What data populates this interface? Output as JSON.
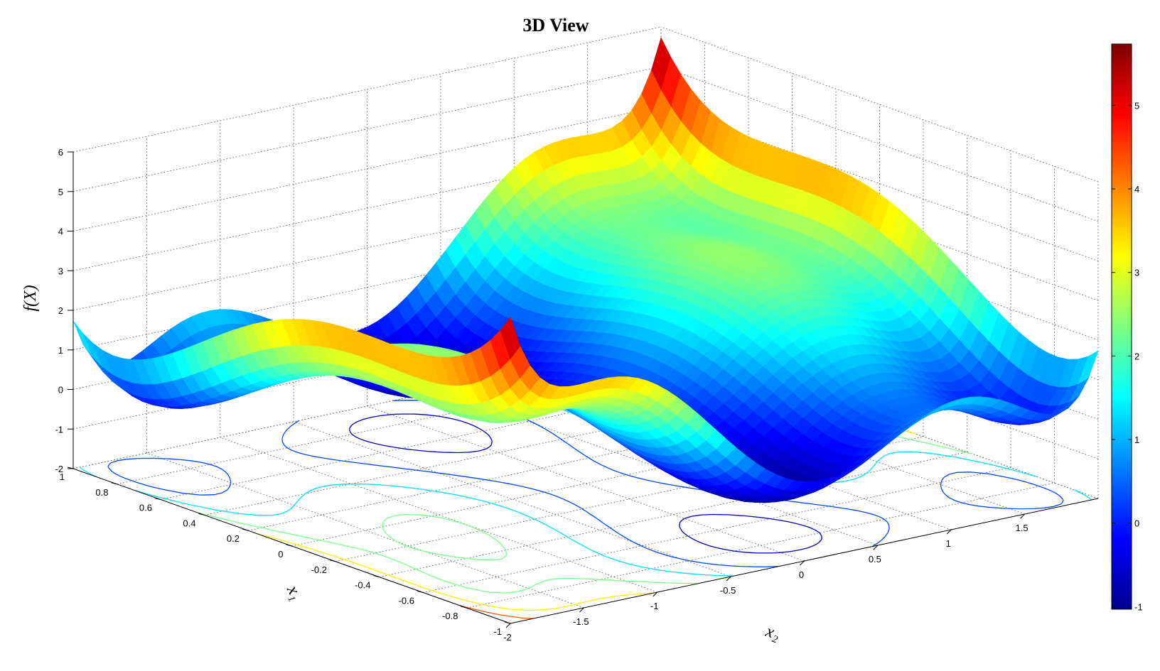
{
  "chart_data": {
    "type": "surface",
    "title": "3D View",
    "xlabel": "x₂",
    "ylabel": "x₁",
    "zlabel": "f(X)",
    "x2_range": [
      -2,
      2
    ],
    "x1_range": [
      -1,
      1
    ],
    "zlim": [
      -2,
      6
    ],
    "grid": "on",
    "colormap": "jet",
    "contour_projection": "floor",
    "x2_ticks": [
      "-2",
      "-1.5",
      "-1",
      "-0.5",
      "0",
      "0.5",
      "1",
      "1.5"
    ],
    "x1_ticks": [
      "-1",
      "-0.8",
      "-0.6",
      "-0.4",
      "-0.2",
      "0",
      "0.2",
      "0.4",
      "0.6",
      "0.8",
      "1"
    ],
    "z_ticks": [
      "-2",
      "-1",
      "0",
      "1",
      "2",
      "3",
      "4",
      "5",
      "6"
    ],
    "colorbar": {
      "range": [
        -1.031,
        5.734
      ],
      "tick_labels": [
        "-1",
        "0",
        "1",
        "2",
        "3",
        "4",
        "5"
      ],
      "colors": [
        "#00008f",
        "#0000ff",
        "#0080ff",
        "#00ffff",
        "#80ff80",
        "#ffff00",
        "#ff8000",
        "#ff0000",
        "#800000"
      ]
    },
    "function": "(4 - 2.1*x2^2 + x2^4/3)*x2^2 + x2*x1 + (-4 + 4*x1^2)*x1^2"
  }
}
